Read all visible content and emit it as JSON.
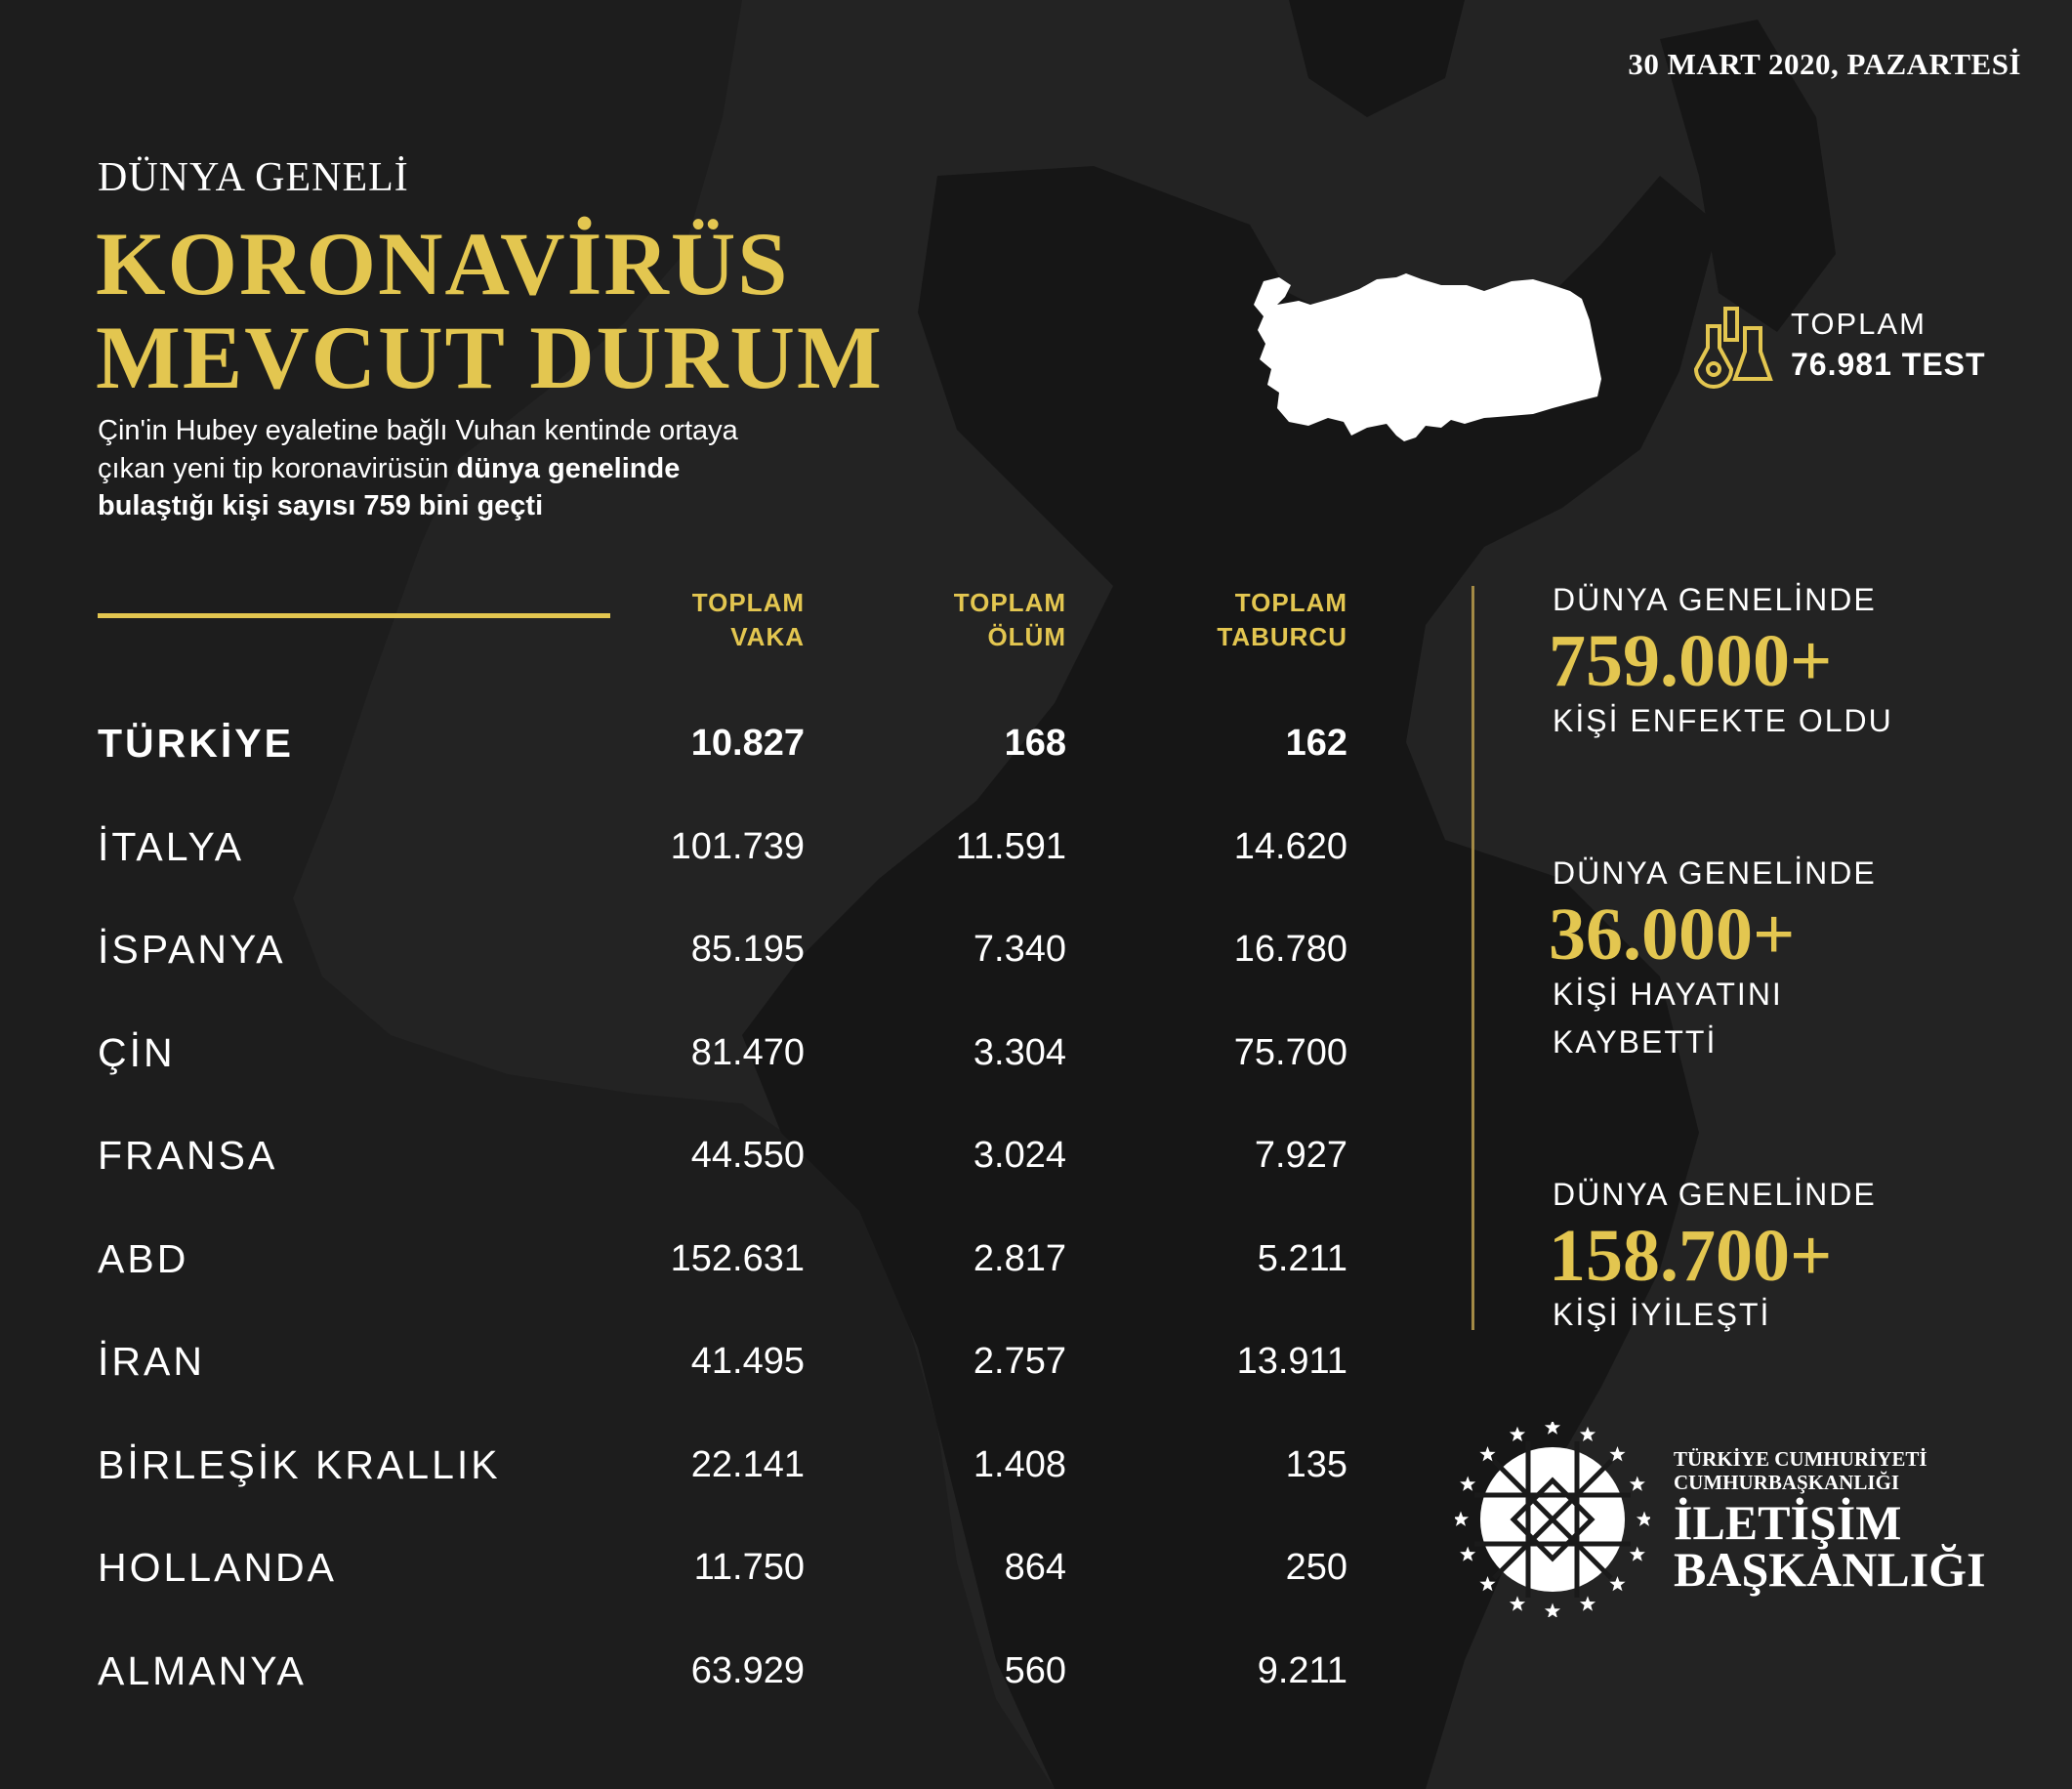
{
  "date": "30 MART 2020, PAZARTESİ",
  "header": {
    "pretitle": "DÜNYA GENELİ",
    "title_line1": "KORONAVİRÜS",
    "title_line2": "MEVCUT DURUM",
    "desc_line1": "Çin'in Hubey eyaletine bağlı Vuhan kentinde ortaya",
    "desc_line2_regular": "çıkan yeni tip koronavirüsün ",
    "desc_line2_bold": "dünya genelinde",
    "desc_line3_bold": "bulaştığı kişi sayısı 759 bini geçti"
  },
  "tests": {
    "label": "TOPLAM",
    "value": "76.981 TEST",
    "icon": "flask-icon"
  },
  "table": {
    "columns": [
      {
        "line1": "TOPLAM",
        "line2": "VAKA"
      },
      {
        "line1": "TOPLAM",
        "line2": "ÖLÜM"
      },
      {
        "line1": "TOPLAM",
        "line2": "TABURCU"
      }
    ],
    "rows": [
      {
        "country": "TÜRKİYE",
        "cases": "10.827",
        "deaths": "168",
        "recovered": "162"
      },
      {
        "country": "İTALYA",
        "cases": "101.739",
        "deaths": "11.591",
        "recovered": "14.620"
      },
      {
        "country": "İSPANYA",
        "cases": "85.195",
        "deaths": "7.340",
        "recovered": "16.780"
      },
      {
        "country": "ÇİN",
        "cases": "81.470",
        "deaths": "3.304",
        "recovered": "75.700"
      },
      {
        "country": "FRANSA",
        "cases": "44.550",
        "deaths": "3.024",
        "recovered": "7.927"
      },
      {
        "country": "ABD",
        "cases": "152.631",
        "deaths": "2.817",
        "recovered": "5.211"
      },
      {
        "country": "İRAN",
        "cases": "41.495",
        "deaths": "2.757",
        "recovered": "13.911"
      },
      {
        "country": "BİRLEŞİK KRALLIK",
        "cases": "22.141",
        "deaths": "1.408",
        "recovered": "135"
      },
      {
        "country": "HOLLANDA",
        "cases": "11.750",
        "deaths": "864",
        "recovered": "250"
      },
      {
        "country": "ALMANYA",
        "cases": "63.929",
        "deaths": "560",
        "recovered": "9.211"
      }
    ]
  },
  "stats": [
    {
      "label": "DÜNYA GENELİNDE",
      "value": "759.000+",
      "caption_line1": "KİŞİ ENFEKTE OLDU",
      "caption_line2": ""
    },
    {
      "label": "DÜNYA GENELİNDE",
      "value": "36.000+",
      "caption_line1": "KİŞİ HAYATINI",
      "caption_line2": "KAYBETTİ"
    },
    {
      "label": "DÜNYA GENELİNDE",
      "value": "158.700+",
      "caption_line1": "KİŞİ İYİLEŞTİ",
      "caption_line2": ""
    }
  ],
  "logo": {
    "line1": "TÜRKİYE CUMHURİYETİ",
    "line2": "CUMHURBAŞKANLIĞI",
    "line3": "İLETİŞİM",
    "line4": "BAŞKANLIĞI"
  },
  "colors": {
    "background": "#232323",
    "map": "#151515",
    "accent": "#e3c650",
    "divider": "#a38a45",
    "text": "#ffffff"
  }
}
